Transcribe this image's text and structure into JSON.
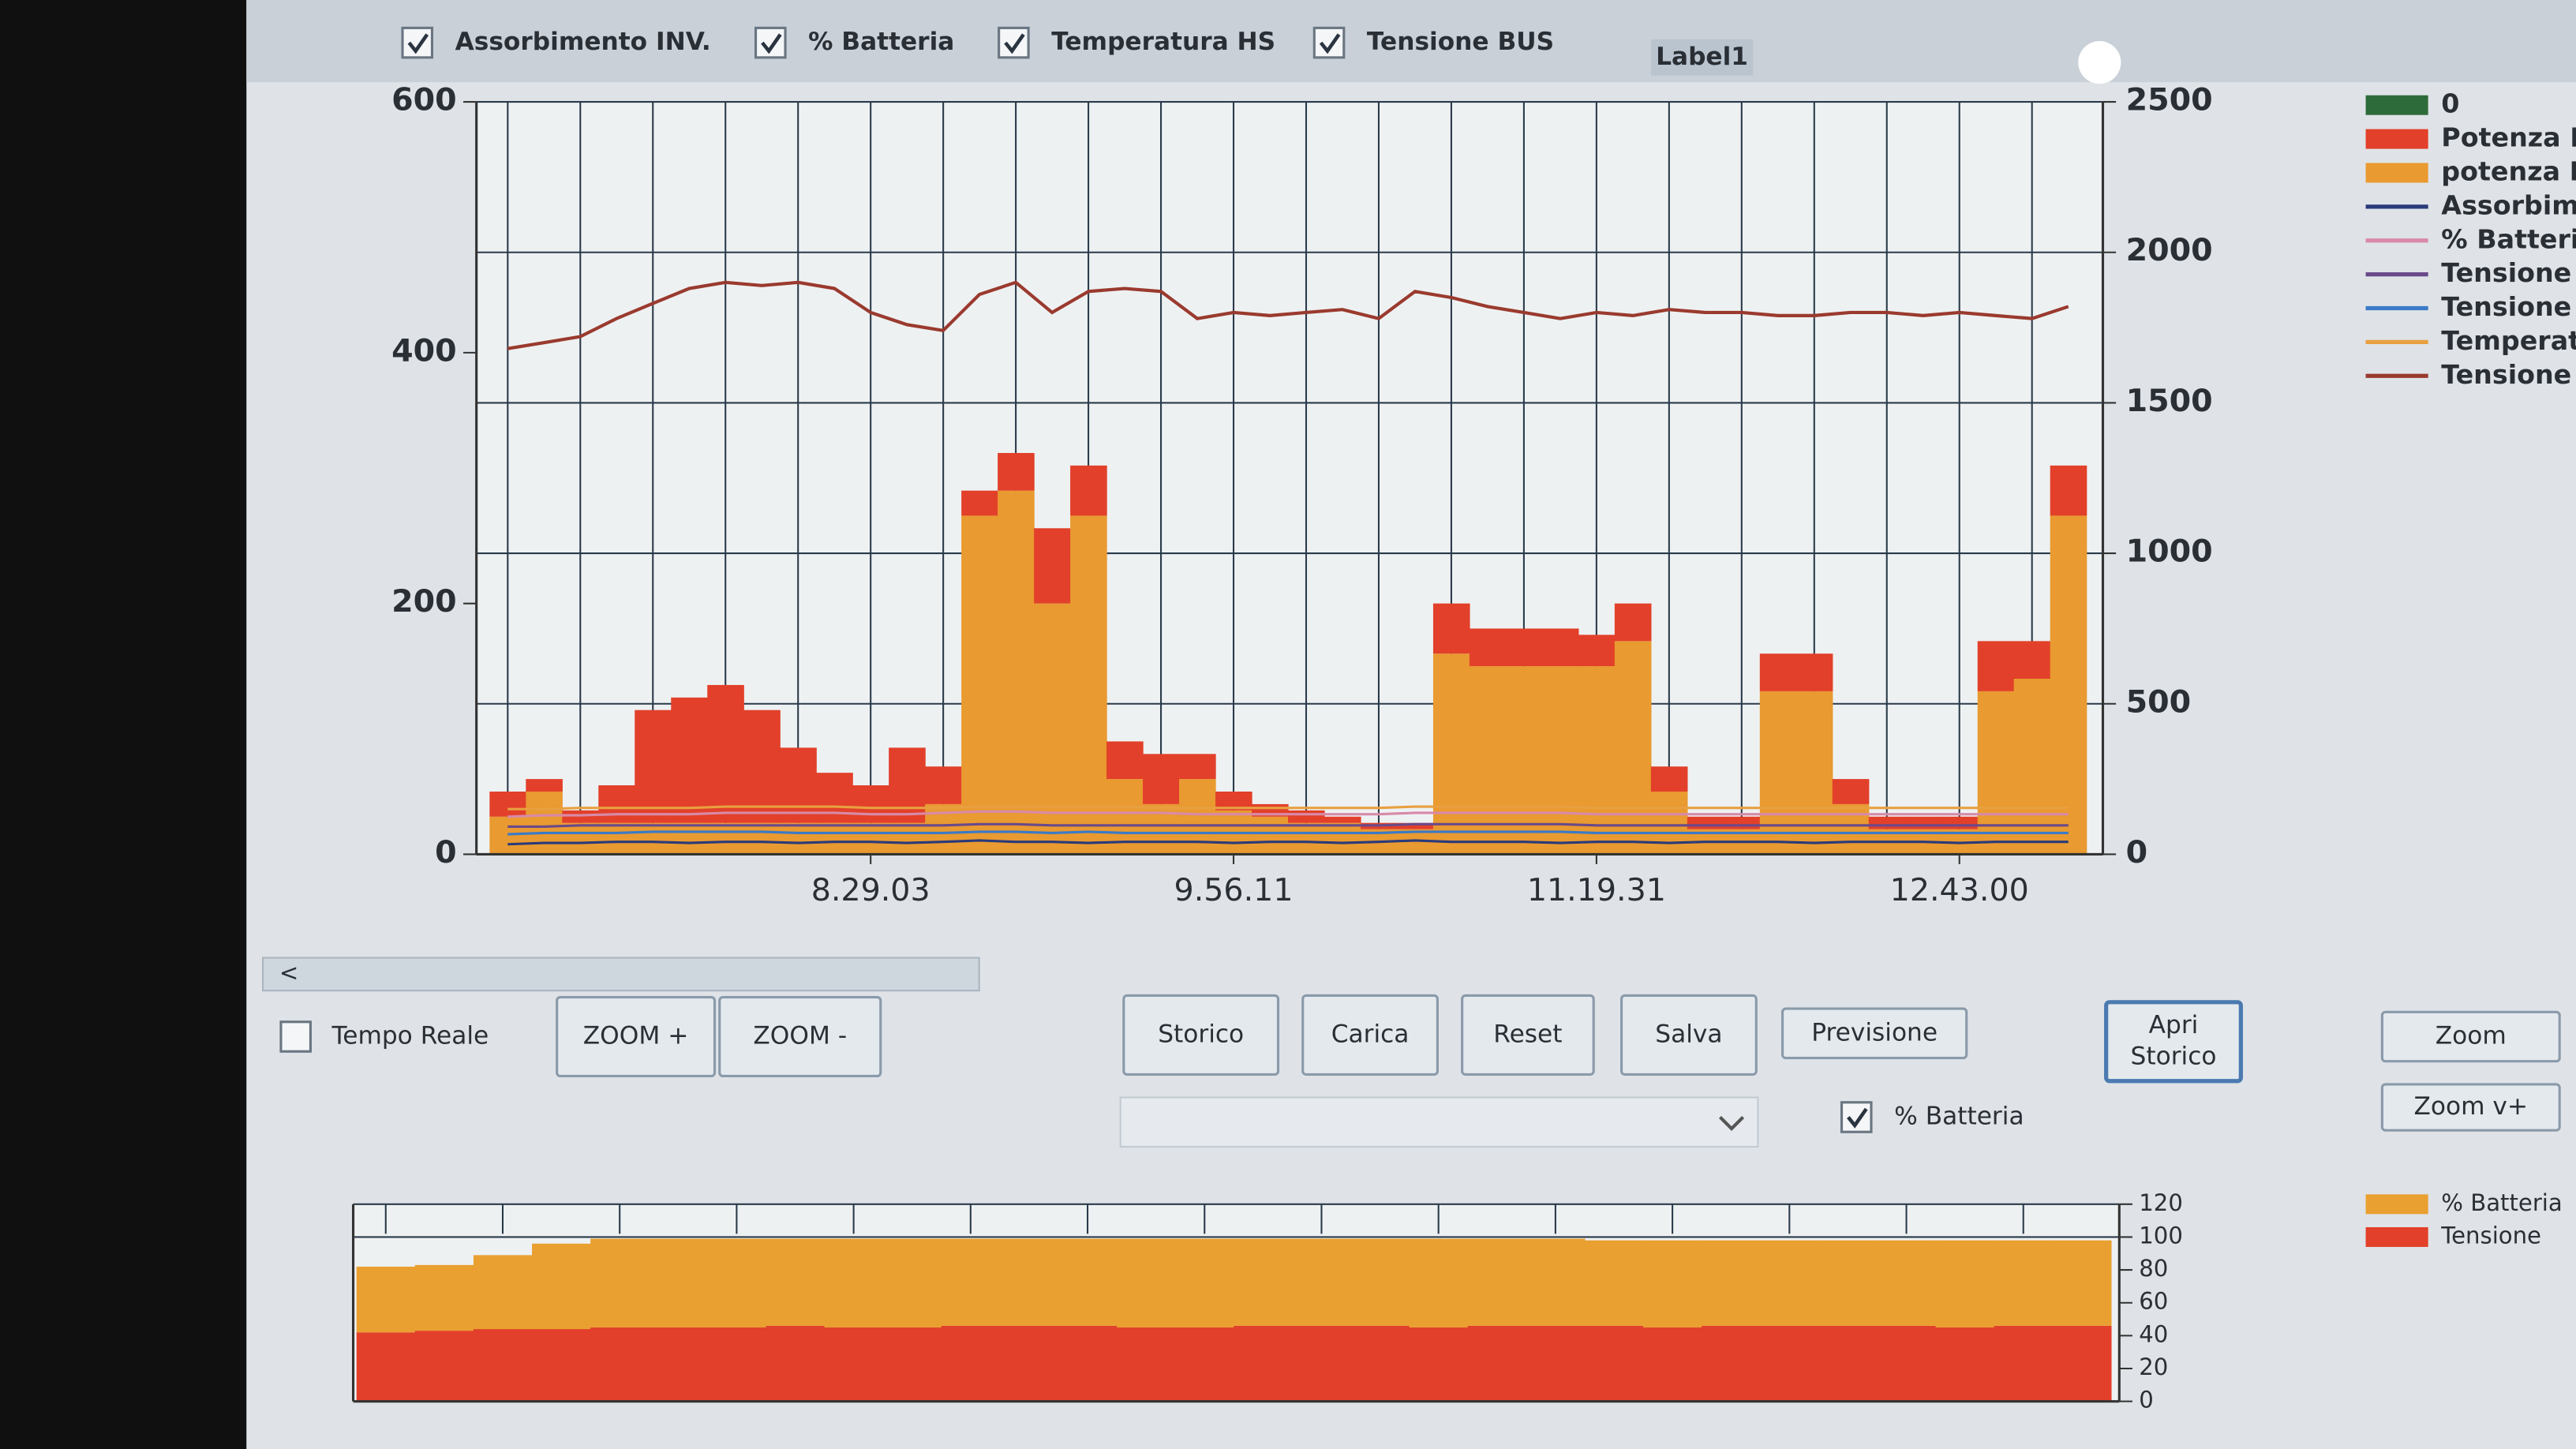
{
  "controls": {
    "top_checkboxes": [
      {
        "label": "Assorbimento INV.",
        "checked": true
      },
      {
        "label": "% Batteria",
        "checked": true
      },
      {
        "label": "Temperatura HS",
        "checked": true
      },
      {
        "label": "Tensione BUS",
        "checked": true
      }
    ],
    "label1": "Label1",
    "tempo_reale": {
      "label": "Tempo Reale",
      "checked": false
    },
    "buttons": [
      {
        "label": [
          "ZOOM +"
        ]
      },
      {
        "label": [
          "ZOOM -"
        ]
      },
      {
        "label": [
          "Storico"
        ]
      },
      {
        "label": [
          "Carica"
        ]
      },
      {
        "label": [
          "Reset"
        ]
      },
      {
        "label": [
          "Salva"
        ]
      },
      {
        "label": [
          "Previsione"
        ]
      },
      {
        "label": [
          "Apri",
          "Storico"
        ]
      },
      {
        "label": [
          "Zoom"
        ]
      },
      {
        "label": [
          "Zoom v+"
        ]
      }
    ],
    "batteria_checkbox": {
      "label": "% Batteria",
      "checked": true
    }
  },
  "chart_data": [
    {
      "type": "bar",
      "categories": [
        null,
        null,
        null,
        null,
        null,
        null,
        null,
        null,
        null,
        null,
        "8.29.03",
        null,
        null,
        null,
        null,
        null,
        null,
        null,
        null,
        null,
        "9.56.11",
        null,
        null,
        null,
        null,
        null,
        null,
        null,
        null,
        null,
        "11.19.31",
        null,
        null,
        null,
        null,
        null,
        null,
        null,
        null,
        null,
        "12.43.00",
        null,
        null,
        null
      ],
      "ylim": [
        0,
        600
      ],
      "yticks": [
        0,
        200,
        400,
        600
      ],
      "y2lim": [
        0,
        2500
      ],
      "y2ticks": [
        0,
        500,
        1000,
        1500,
        2000,
        2500
      ],
      "grid": true,
      "series": [
        {
          "name": "0",
          "color": "#2e6b3a",
          "type": "bar"
        },
        {
          "name": "Potenza F",
          "color": "#e2402a",
          "type": "bar",
          "values": [
            20,
            10,
            10,
            30,
            90,
            100,
            110,
            90,
            60,
            40,
            30,
            60,
            30,
            20,
            30,
            60,
            40,
            30,
            40,
            20,
            15,
            10,
            10,
            5,
            5,
            5,
            40,
            30,
            30,
            30,
            25,
            30,
            20,
            10,
            10,
            30,
            30,
            20,
            10,
            10,
            10,
            40,
            30,
            40
          ]
        },
        {
          "name": "potenza I",
          "color": "#e99a30",
          "type": "bar",
          "values": [
            30,
            50,
            25,
            25,
            25,
            25,
            25,
            25,
            25,
            25,
            25,
            25,
            40,
            270,
            290,
            200,
            270,
            60,
            40,
            60,
            35,
            30,
            25,
            25,
            20,
            20,
            160,
            150,
            150,
            150,
            150,
            170,
            50,
            20,
            20,
            130,
            130,
            40,
            20,
            20,
            20,
            130,
            140,
            270
          ]
        },
        {
          "name": "Assorbim",
          "color": "#2a3a7a",
          "type": "line",
          "values": [
            8,
            9,
            9,
            10,
            10,
            9,
            10,
            10,
            9,
            10,
            10,
            9,
            10,
            11,
            10,
            10,
            9,
            10,
            10,
            10,
            9,
            10,
            10,
            9,
            10,
            11,
            10,
            10,
            10,
            9,
            10,
            10,
            9,
            10,
            10,
            10,
            9,
            10,
            10,
            10,
            9,
            10,
            10,
            10
          ]
        },
        {
          "name": "% Batteria",
          "color": "#d88aa8",
          "type": "line",
          "values": [
            30,
            31,
            31,
            32,
            32,
            32,
            33,
            33,
            33,
            33,
            32,
            32,
            33,
            34,
            34,
            33,
            33,
            33,
            33,
            32,
            32,
            32,
            32,
            32,
            32,
            33,
            33,
            33,
            33,
            33,
            32,
            32,
            32,
            32,
            32,
            32,
            32,
            32,
            32,
            32,
            32,
            32,
            32,
            32
          ]
        },
        {
          "name": "Tensione",
          "color": "#6a4a8a",
          "type": "line",
          "values": [
            22,
            22,
            23,
            23,
            23,
            23,
            23,
            23,
            23,
            23,
            23,
            23,
            23,
            24,
            24,
            23,
            23,
            23,
            23,
            23,
            23,
            23,
            23,
            23,
            23,
            24,
            24,
            24,
            24,
            24,
            23,
            23,
            23,
            23,
            23,
            23,
            23,
            23,
            23,
            23,
            23,
            23,
            23,
            23
          ]
        },
        {
          "name": "Tensione",
          "color": "#3a7ac8",
          "type": "line",
          "values": [
            16,
            17,
            17,
            17,
            18,
            18,
            18,
            18,
            17,
            17,
            17,
            17,
            17,
            18,
            18,
            17,
            18,
            17,
            17,
            17,
            17,
            17,
            17,
            17,
            17,
            18,
            18,
            18,
            18,
            18,
            17,
            17,
            17,
            17,
            17,
            17,
            17,
            17,
            17,
            17,
            17,
            17,
            17,
            17
          ]
        },
        {
          "name": "Temperat",
          "color": "#e8a040",
          "type": "line",
          "values": [
            36,
            36,
            37,
            37,
            37,
            37,
            38,
            38,
            38,
            38,
            37,
            37,
            37,
            38,
            38,
            38,
            38,
            38,
            37,
            37,
            37,
            37,
            37,
            37,
            37,
            38,
            38,
            38,
            38,
            38,
            37,
            37,
            37,
            37,
            37,
            37,
            37,
            37,
            37,
            37,
            37,
            37,
            37,
            37
          ]
        },
        {
          "name": "Tensione",
          "color": "#9a3a2e",
          "type": "line",
          "axis": "y2",
          "values": [
            1680,
            1700,
            1720,
            1780,
            1830,
            1880,
            1900,
            1890,
            1900,
            1880,
            1800,
            1760,
            1740,
            1860,
            1900,
            1800,
            1870,
            1880,
            1870,
            1780,
            1800,
            1790,
            1800,
            1810,
            1780,
            1870,
            1850,
            1820,
            1800,
            1780,
            1800,
            1790,
            1810,
            1800,
            1800,
            1790,
            1790,
            1800,
            1800,
            1790,
            1800,
            1790,
            1780,
            1820
          ]
        }
      ]
    },
    {
      "type": "bar",
      "y_axis_side": "right",
      "categories": [
        null,
        null,
        null,
        null,
        null,
        null,
        null,
        null,
        null,
        null,
        null,
        null,
        null,
        null,
        null,
        null,
        null,
        null,
        null,
        null,
        null,
        null,
        null,
        null,
        null,
        null,
        null,
        null,
        null,
        null
      ],
      "ylim": [
        0,
        120
      ],
      "yticks": [
        0,
        20,
        40,
        60,
        80,
        100,
        120
      ],
      "grid": true,
      "series": [
        {
          "name": "% Batteria",
          "color": "#e9a030",
          "type": "bar",
          "values": [
            40,
            40,
            45,
            52,
            54,
            54,
            54,
            53,
            54,
            54,
            53,
            53,
            53,
            54,
            54,
            53,
            53,
            53,
            54,
            53,
            53,
            52,
            53,
            52,
            52,
            52,
            52,
            53,
            52,
            52
          ]
        },
        {
          "name": "Tensione",
          "color": "#e2402a",
          "type": "bar",
          "values": [
            42,
            43,
            44,
            44,
            45,
            45,
            45,
            46,
            45,
            45,
            46,
            46,
            46,
            45,
            45,
            46,
            46,
            46,
            45,
            46,
            46,
            46,
            45,
            46,
            46,
            46,
            46,
            45,
            46,
            46
          ]
        }
      ]
    }
  ]
}
